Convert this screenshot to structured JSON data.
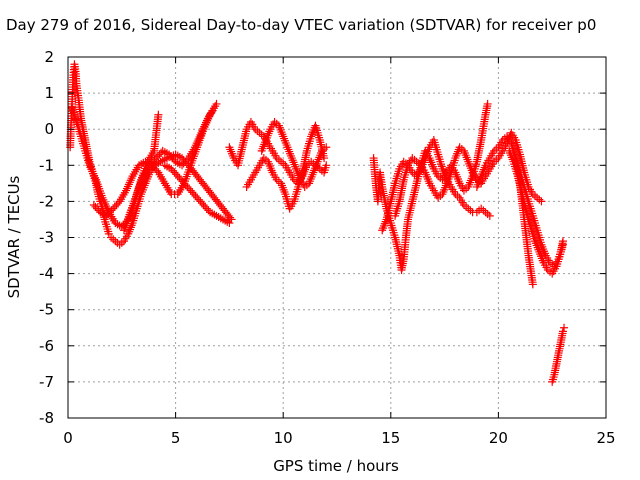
{
  "chart_data": {
    "type": "scatter",
    "title": "Day 279 of 2016, Sidereal Day-to-day VTEC variation (SDTVAR) for receiver p0",
    "xlabel": "GPS time / hours",
    "ylabel": "SDTVAR / TECUs",
    "xlim": [
      0,
      25
    ],
    "ylim": [
      -8,
      2
    ],
    "xticks": [
      "0",
      "5",
      "10",
      "15",
      "20",
      "25"
    ],
    "yticks": [
      "2",
      "1",
      "0",
      "-1",
      "-2",
      "-3",
      "-4",
      "-5",
      "-6",
      "-7",
      "-8"
    ],
    "grid": true,
    "marker": "plus",
    "color": "#ff0000",
    "series": [
      {
        "points": [
          [
            0.1,
            -0.5
          ],
          [
            0.15,
            0.3
          ],
          [
            0.2,
            0.9
          ],
          [
            0.25,
            1.5
          ],
          [
            0.3,
            1.8
          ],
          [
            0.35,
            1.6
          ],
          [
            0.4,
            1.2
          ],
          [
            0.5,
            0.8
          ],
          [
            0.6,
            0.3
          ],
          [
            0.7,
            0
          ],
          [
            0.8,
            -0.3
          ],
          [
            0.9,
            -0.6
          ],
          [
            1.0,
            -0.9
          ],
          [
            1.1,
            -1.1
          ],
          [
            1.2,
            -1.3
          ],
          [
            1.3,
            -1.5
          ],
          [
            1.4,
            -1.8
          ],
          [
            1.5,
            -2.0
          ],
          [
            1.6,
            -2.2
          ],
          [
            1.7,
            -2.5
          ],
          [
            1.8,
            -2.7
          ],
          [
            1.9,
            -2.9
          ],
          [
            2.0,
            -3.0
          ],
          [
            2.2,
            -3.1
          ],
          [
            2.4,
            -3.2
          ],
          [
            2.6,
            -3.1
          ],
          [
            2.8,
            -2.9
          ],
          [
            3.0,
            -2.6
          ],
          [
            3.2,
            -2.2
          ],
          [
            3.4,
            -1.8
          ],
          [
            3.6,
            -1.5
          ],
          [
            3.8,
            -1.2
          ],
          [
            4.0,
            -1.0
          ],
          [
            4.3,
            -0.9
          ],
          [
            4.6,
            -0.8
          ],
          [
            5.0,
            -0.7
          ],
          [
            5.3,
            -0.8
          ],
          [
            5.6,
            -1.0
          ],
          [
            6.0,
            -1.3
          ],
          [
            6.4,
            -1.6
          ],
          [
            6.8,
            -1.9
          ],
          [
            7.2,
            -2.2
          ],
          [
            7.6,
            -2.5
          ]
        ]
      },
      {
        "points": [
          [
            0.2,
            0.6
          ],
          [
            0.4,
            0.2
          ],
          [
            0.6,
            -0.2
          ],
          [
            0.8,
            -0.6
          ],
          [
            1.0,
            -1.0
          ],
          [
            1.3,
            -1.4
          ],
          [
            1.6,
            -1.9
          ],
          [
            1.9,
            -2.3
          ],
          [
            2.2,
            -2.6
          ],
          [
            2.5,
            -2.7
          ],
          [
            2.8,
            -2.5
          ],
          [
            3.1,
            -2.0
          ],
          [
            3.4,
            -1.4
          ],
          [
            3.7,
            -0.9
          ],
          [
            4.0,
            -0.6
          ],
          [
            4.2,
            0.4
          ]
        ]
      },
      {
        "points": [
          [
            1.2,
            -2.1
          ],
          [
            1.5,
            -2.3
          ],
          [
            1.8,
            -2.4
          ],
          [
            2.1,
            -2.2
          ],
          [
            2.4,
            -2.0
          ],
          [
            2.7,
            -1.7
          ],
          [
            3.0,
            -1.3
          ],
          [
            3.3,
            -1.0
          ],
          [
            3.6,
            -0.9
          ],
          [
            3.9,
            -1.0
          ],
          [
            4.2,
            -1.2
          ],
          [
            4.5,
            -1.5
          ],
          [
            4.8,
            -1.8
          ],
          [
            5.1,
            -1.8
          ],
          [
            5.4,
            -1.5
          ],
          [
            5.7,
            -1.0
          ],
          [
            6.0,
            -0.5
          ],
          [
            6.3,
            0
          ],
          [
            6.6,
            0.4
          ],
          [
            6.9,
            0.7
          ]
        ]
      },
      {
        "points": [
          [
            2.6,
            -2.8
          ],
          [
            2.9,
            -2.3
          ],
          [
            3.2,
            -1.8
          ],
          [
            3.5,
            -1.3
          ],
          [
            3.8,
            -1.0
          ],
          [
            4.1,
            -0.8
          ],
          [
            4.4,
            -0.6
          ],
          [
            4.7,
            -0.7
          ],
          [
            5.0,
            -0.9
          ],
          [
            5.3,
            -1.0
          ],
          [
            5.6,
            -0.8
          ],
          [
            5.9,
            -0.5
          ],
          [
            6.2,
            -0.1
          ],
          [
            6.5,
            0.3
          ],
          [
            6.7,
            0.5
          ]
        ]
      },
      {
        "points": [
          [
            4.5,
            -1.0
          ],
          [
            4.8,
            -1.1
          ],
          [
            5.1,
            -1.3
          ],
          [
            5.4,
            -1.5
          ],
          [
            5.7,
            -1.7
          ],
          [
            6.0,
            -1.9
          ],
          [
            6.3,
            -2.1
          ],
          [
            6.6,
            -2.3
          ],
          [
            6.9,
            -2.4
          ],
          [
            7.2,
            -2.5
          ],
          [
            7.5,
            -2.6
          ]
        ]
      },
      {
        "points": [
          [
            7.5,
            -0.5
          ],
          [
            7.7,
            -0.8
          ],
          [
            7.9,
            -1.0
          ],
          [
            8.1,
            -0.5
          ],
          [
            8.3,
            0
          ],
          [
            8.5,
            0.2
          ],
          [
            8.7,
            0
          ],
          [
            8.9,
            -0.1
          ],
          [
            9.1,
            -0.2
          ],
          [
            9.3,
            -0.4
          ],
          [
            9.5,
            -0.6
          ],
          [
            9.7,
            -0.8
          ],
          [
            9.9,
            -0.9
          ],
          [
            10.1,
            -1.0
          ],
          [
            10.3,
            -1.2
          ],
          [
            10.5,
            -1.4
          ],
          [
            10.7,
            -1.5
          ],
          [
            10.9,
            -1.3
          ],
          [
            11.1,
            -1.0
          ],
          [
            11.3,
            -0.9
          ],
          [
            11.5,
            -1.0
          ],
          [
            11.7,
            -1.1
          ],
          [
            11.9,
            -1.2
          ],
          [
            12.0,
            -1.0
          ]
        ]
      },
      {
        "points": [
          [
            8.3,
            -1.6
          ],
          [
            8.5,
            -1.4
          ],
          [
            8.7,
            -1.2
          ],
          [
            8.9,
            -1.0
          ],
          [
            9.1,
            -0.8
          ],
          [
            9.3,
            -0.9
          ],
          [
            9.5,
            -1.2
          ],
          [
            9.7,
            -1.4
          ],
          [
            9.9,
            -1.5
          ],
          [
            10.1,
            -1.8
          ],
          [
            10.3,
            -2.2
          ],
          [
            10.5,
            -2.0
          ],
          [
            10.7,
            -1.6
          ],
          [
            10.9,
            -1.2
          ],
          [
            11.1,
            -0.6
          ],
          [
            11.3,
            -0.2
          ],
          [
            11.5,
            0.1
          ],
          [
            11.7,
            -0.3
          ],
          [
            11.9,
            -0.8
          ]
        ]
      },
      {
        "points": [
          [
            9.0,
            -0.6
          ],
          [
            9.2,
            -0.3
          ],
          [
            9.4,
            0
          ],
          [
            9.6,
            0.2
          ],
          [
            9.8,
            0.1
          ],
          [
            10.0,
            -0.2
          ],
          [
            10.2,
            -0.5
          ],
          [
            10.4,
            -0.8
          ],
          [
            10.6,
            -1.1
          ],
          [
            10.8,
            -1.4
          ],
          [
            11.0,
            -1.6
          ],
          [
            11.2,
            -1.5
          ],
          [
            11.4,
            -1.2
          ],
          [
            11.6,
            -0.9
          ],
          [
            11.8,
            -0.6
          ],
          [
            12.0,
            -0.5
          ]
        ]
      },
      {
        "points": [
          [
            14.2,
            -0.8
          ],
          [
            14.3,
            -1.5
          ],
          [
            14.4,
            -2.0
          ],
          [
            14.5,
            -1.2
          ],
          [
            14.6,
            -1.6
          ],
          [
            14.8,
            -2.2
          ],
          [
            15.0,
            -2.6
          ],
          [
            15.2,
            -3.0
          ],
          [
            15.4,
            -3.5
          ],
          [
            15.5,
            -3.9
          ],
          [
            15.6,
            -3.6
          ],
          [
            15.7,
            -3.0
          ],
          [
            15.8,
            -2.5
          ],
          [
            16.0,
            -2.0
          ],
          [
            16.2,
            -1.5
          ],
          [
            16.4,
            -1.0
          ],
          [
            16.6,
            -0.6
          ],
          [
            16.8,
            -0.8
          ],
          [
            17.0,
            -1.1
          ],
          [
            17.2,
            -1.3
          ],
          [
            17.4,
            -1.4
          ],
          [
            17.6,
            -1.2
          ],
          [
            17.8,
            -1.0
          ],
          [
            18.0,
            -1.2
          ],
          [
            18.2,
            -1.5
          ],
          [
            18.4,
            -1.7
          ],
          [
            18.6,
            -1.6
          ],
          [
            18.8,
            -1.3
          ],
          [
            19.0,
            -0.9
          ],
          [
            19.2,
            -0.3
          ],
          [
            19.4,
            0.4
          ],
          [
            19.5,
            0.7
          ]
        ]
      },
      {
        "points": [
          [
            14.6,
            -2.8
          ],
          [
            14.8,
            -2.5
          ],
          [
            15.0,
            -2.0
          ],
          [
            15.2,
            -1.5
          ],
          [
            15.4,
            -1.1
          ],
          [
            15.6,
            -0.9
          ],
          [
            15.8,
            -1.0
          ],
          [
            16.0,
            -1.2
          ],
          [
            16.2,
            -1.3
          ],
          [
            16.4,
            -1.1
          ],
          [
            16.6,
            -0.8
          ],
          [
            16.8,
            -0.5
          ],
          [
            17.0,
            -0.3
          ],
          [
            17.2,
            -0.7
          ],
          [
            17.4,
            -1.1
          ],
          [
            17.6,
            -1.4
          ],
          [
            17.8,
            -1.6
          ],
          [
            18.0,
            -1.8
          ],
          [
            18.2,
            -1.9
          ],
          [
            18.4,
            -2.1
          ],
          [
            18.6,
            -2.2
          ],
          [
            18.8,
            -2.3
          ],
          [
            19.0,
            -2.3
          ],
          [
            19.2,
            -2.2
          ],
          [
            19.4,
            -2.3
          ],
          [
            19.6,
            -2.4
          ]
        ]
      },
      {
        "points": [
          [
            15.2,
            -2.4
          ],
          [
            15.4,
            -2.0
          ],
          [
            15.6,
            -1.4
          ],
          [
            15.8,
            -1.0
          ],
          [
            16.0,
            -0.8
          ],
          [
            16.2,
            -0.9
          ],
          [
            16.4,
            -1.0
          ],
          [
            16.6,
            -1.2
          ],
          [
            16.8,
            -1.5
          ],
          [
            17.0,
            -1.7
          ],
          [
            17.2,
            -1.9
          ],
          [
            17.4,
            -1.8
          ],
          [
            17.6,
            -1.5
          ],
          [
            17.8,
            -1.2
          ],
          [
            18.0,
            -0.8
          ],
          [
            18.2,
            -0.5
          ],
          [
            18.4,
            -0.6
          ],
          [
            18.6,
            -0.9
          ],
          [
            18.8,
            -1.2
          ],
          [
            19.0,
            -1.4
          ],
          [
            19.2,
            -1.5
          ],
          [
            19.4,
            -1.3
          ],
          [
            19.6,
            -1.1
          ],
          [
            19.8,
            -0.9
          ],
          [
            20.0,
            -0.8
          ],
          [
            20.2,
            -0.6
          ],
          [
            20.4,
            -0.4
          ],
          [
            20.6,
            -0.1
          ],
          [
            20.8,
            -0.3
          ],
          [
            21.0,
            -0.7
          ],
          [
            21.2,
            -1.2
          ],
          [
            21.4,
            -1.6
          ],
          [
            21.6,
            -1.8
          ],
          [
            21.8,
            -1.9
          ],
          [
            22.0,
            -2.0
          ]
        ]
      },
      {
        "points": [
          [
            19.0,
            -1.6
          ],
          [
            19.2,
            -1.3
          ],
          [
            19.4,
            -1.0
          ],
          [
            19.6,
            -0.8
          ],
          [
            19.8,
            -0.6
          ],
          [
            20.0,
            -0.5
          ],
          [
            20.2,
            -0.3
          ],
          [
            20.4,
            -0.2
          ],
          [
            20.6,
            -0.4
          ],
          [
            20.8,
            -0.8
          ],
          [
            21.0,
            -1.5
          ],
          [
            21.2,
            -2.5
          ],
          [
            21.4,
            -3.5
          ],
          [
            21.6,
            -4.3
          ]
        ]
      },
      {
        "points": [
          [
            20.5,
            -0.6
          ],
          [
            20.7,
            -0.9
          ],
          [
            20.9,
            -1.3
          ],
          [
            21.1,
            -1.8
          ],
          [
            21.3,
            -2.3
          ],
          [
            21.5,
            -2.7
          ],
          [
            21.7,
            -3.1
          ],
          [
            21.9,
            -3.4
          ],
          [
            22.1,
            -3.7
          ],
          [
            22.3,
            -3.9
          ],
          [
            22.5,
            -4.0
          ],
          [
            22.7,
            -3.8
          ],
          [
            22.9,
            -3.4
          ],
          [
            23.0,
            -3.1
          ]
        ]
      },
      {
        "points": [
          [
            20.8,
            -0.8
          ],
          [
            21.0,
            -1.2
          ],
          [
            21.2,
            -1.6
          ],
          [
            21.4,
            -2.0
          ],
          [
            21.6,
            -2.4
          ],
          [
            21.8,
            -2.8
          ],
          [
            22.0,
            -3.2
          ],
          [
            22.2,
            -3.5
          ],
          [
            22.4,
            -3.7
          ],
          [
            22.6,
            -3.8
          ],
          [
            22.8,
            -3.6
          ],
          [
            23.0,
            -3.2
          ]
        ]
      },
      {
        "points": [
          [
            22.5,
            -7.0
          ],
          [
            22.6,
            -6.8
          ],
          [
            22.7,
            -6.5
          ],
          [
            22.8,
            -6.2
          ],
          [
            22.9,
            -5.9
          ],
          [
            23.0,
            -5.6
          ],
          [
            23.05,
            -5.5
          ]
        ]
      }
    ]
  }
}
